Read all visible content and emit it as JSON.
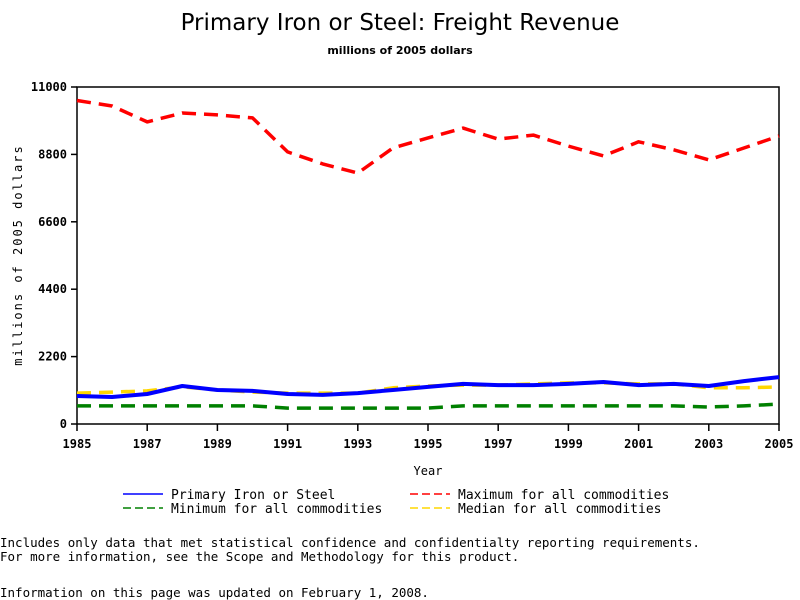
{
  "chart_data": {
    "type": "line",
    "title": "Primary Iron or Steel: Freight Revenue",
    "subtitle": "millions of 2005 dollars",
    "xlabel": "Year",
    "ylabel": "millions of 2005 dollars",
    "xlim": [
      1985,
      2005
    ],
    "ylim": [
      0,
      11000
    ],
    "x_ticks": [
      "1985",
      "1987",
      "1989",
      "1991",
      "1993",
      "1995",
      "1997",
      "1999",
      "2001",
      "2003",
      "2005"
    ],
    "y_ticks": [
      "0",
      "2200",
      "4400",
      "6600",
      "8800",
      "11000"
    ],
    "grid": false,
    "legend_position": "bottom",
    "x": [
      1985,
      1986,
      1987,
      1988,
      1989,
      1990,
      1991,
      1992,
      1993,
      1994,
      1995,
      1996,
      1997,
      1998,
      1999,
      2000,
      2001,
      2002,
      2003,
      2004,
      2005
    ],
    "series": [
      {
        "name": "Primary Iron or Steel",
        "color": "#0000ff",
        "style": "solid",
        "values": [
          914,
          880,
          980,
          1240,
          1110,
          1080,
          980,
          950,
          1010,
          1110,
          1210,
          1310,
          1270,
          1270,
          1310,
          1370,
          1270,
          1310,
          1240,
          1400,
          1530
        ]
      },
      {
        "name": "Maximum for all commodities",
        "color": "#ff0000",
        "style": "dashed",
        "values": [
          10560,
          10380,
          9860,
          10150,
          10090,
          9990,
          8880,
          8490,
          8190,
          9010,
          9340,
          9660,
          9300,
          9430,
          9070,
          8750,
          9210,
          8950,
          8620,
          9010,
          9400
        ]
      },
      {
        "name": "Minimum for all commodities",
        "color": "#008000",
        "style": "dashed",
        "values": [
          590,
          590,
          590,
          590,
          590,
          590,
          520,
          520,
          520,
          520,
          520,
          590,
          590,
          590,
          590,
          590,
          590,
          590,
          555,
          590,
          650
        ]
      },
      {
        "name": "Median for all commodities",
        "color": "#ffd700",
        "style": "dashed",
        "values": [
          1010,
          1040,
          1080,
          1210,
          1110,
          1040,
          1010,
          1010,
          1010,
          1180,
          1240,
          1270,
          1270,
          1310,
          1340,
          1340,
          1310,
          1310,
          1180,
          1180,
          1210
        ]
      }
    ],
    "draw_order": [
      3,
      0,
      2,
      1
    ]
  },
  "notes": {
    "line1": "Includes only data that met statistical confidence and confidentialty reporting requirements.",
    "line2": "For more information, see the Scope and Methodology for this product.",
    "updated": "Information on this page was updated on February 1, 2008."
  }
}
